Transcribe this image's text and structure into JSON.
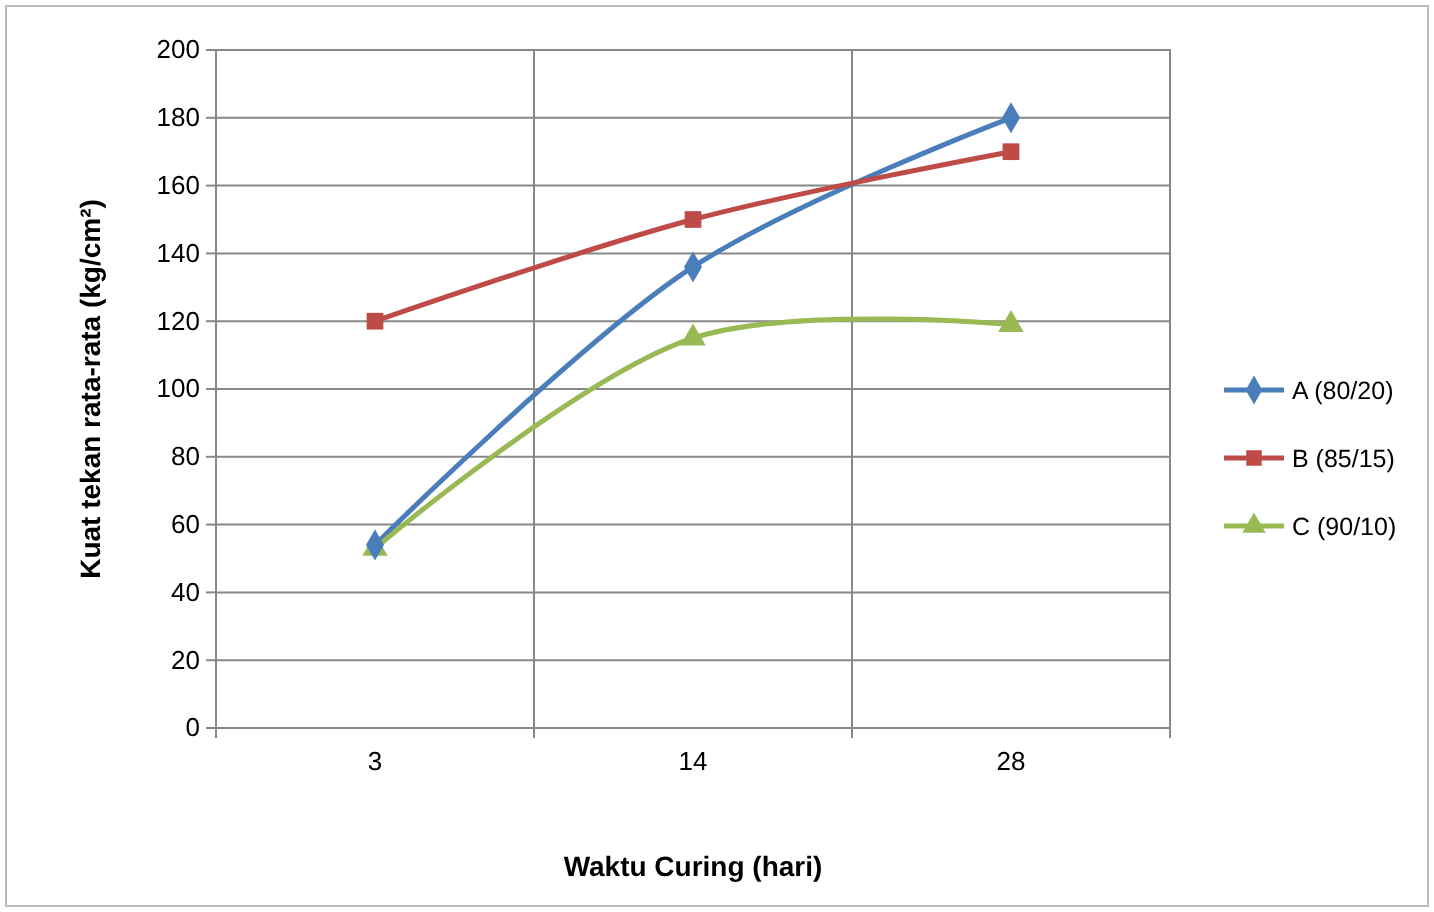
{
  "chart_data": {
    "type": "line",
    "xlabel": "Waktu Curing (hari)",
    "ylabel": "Kuat tekan rata-rata (kg/cm²)",
    "categories": [
      "3",
      "14",
      "28"
    ],
    "series": [
      {
        "name": "A (80/20)",
        "color": "#4a7ebb",
        "marker": "diamond",
        "values": [
          54,
          136,
          180
        ]
      },
      {
        "name": "B (85/15)",
        "color": "#be4b48",
        "marker": "square",
        "values": [
          120,
          150,
          170
        ]
      },
      {
        "name": "C (90/10)",
        "color": "#98b954",
        "marker": "triangle",
        "values": [
          53,
          115,
          119
        ]
      }
    ],
    "ylim": [
      0,
      200
    ],
    "yticks": [
      0,
      20,
      40,
      60,
      80,
      100,
      120,
      140,
      160,
      180,
      200
    ],
    "grid": true,
    "legend": "right",
    "line_style": "solid"
  }
}
